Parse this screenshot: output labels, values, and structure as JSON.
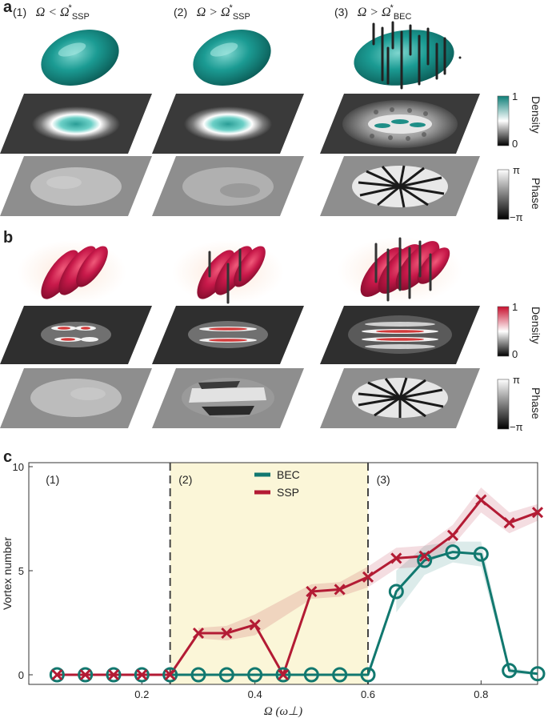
{
  "panels": {
    "a": "a",
    "b": "b",
    "c": "c"
  },
  "columns": [
    {
      "num": "(1)",
      "sym": "Ω",
      "rel": "<",
      "star": "*",
      "sub": "SSP"
    },
    {
      "num": "(2)",
      "sym": "Ω",
      "rel": ">",
      "star": "*",
      "sub": "SSP"
    },
    {
      "num": "(3)",
      "sym": "Ω",
      "rel": ">",
      "star": "*",
      "sub": "BEC"
    }
  ],
  "colorbars": {
    "density_a": {
      "label": "Density",
      "top": "1",
      "bottom": "0",
      "color": "#0f7f78"
    },
    "phase_a": {
      "label": "Phase",
      "top": "π",
      "bottom": "−π"
    },
    "density_b": {
      "label": "Density",
      "top": "1",
      "bottom": "0",
      "color": "#c8102e"
    },
    "phase_b": {
      "label": "Phase",
      "top": "π",
      "bottom": "−π"
    }
  },
  "chart_data": {
    "type": "line",
    "xlabel": "Ω (ω⊥)",
    "ylabel": "Vortex number",
    "xlim": [
      0.0,
      0.9
    ],
    "ylim": [
      0,
      10
    ],
    "xticks": [
      "0.2",
      "0.4",
      "0.6",
      "0.8"
    ],
    "xtick_values": [
      0.2,
      0.4,
      0.6,
      0.8
    ],
    "yticks": [
      "0",
      "5",
      "10"
    ],
    "ytick_values": [
      0,
      5,
      10
    ],
    "regions": [
      {
        "label": "(1)",
        "from": 0.0,
        "to": 0.25
      },
      {
        "label": "(2)",
        "from": 0.25,
        "to": 0.6,
        "fill": "#fbf6d8"
      },
      {
        "label": "(3)",
        "from": 0.6,
        "to": 0.9
      }
    ],
    "dashed_lines_x": [
      0.25,
      0.6
    ],
    "legend": {
      "position": "top-center"
    },
    "series": [
      {
        "name": "BEC",
        "color": "#11786f",
        "marker": "circle",
        "x": [
          0.05,
          0.1,
          0.15,
          0.2,
          0.25,
          0.3,
          0.35,
          0.4,
          0.45,
          0.5,
          0.55,
          0.6,
          0.65,
          0.7,
          0.75,
          0.8,
          0.85,
          0.9
        ],
        "y": [
          0,
          0,
          0,
          0,
          0,
          0,
          0,
          0,
          0,
          0,
          0,
          0,
          4.0,
          5.5,
          5.9,
          5.8,
          0.2,
          0.05
        ],
        "band": [
          0,
          0,
          0,
          0,
          0,
          0,
          0,
          0,
          0,
          0,
          0,
          0,
          1.0,
          0.7,
          0.5,
          0.6,
          0.15,
          0.05
        ]
      },
      {
        "name": "SSP",
        "color": "#b31b34",
        "marker": "x",
        "x": [
          0.05,
          0.1,
          0.15,
          0.2,
          0.25,
          0.3,
          0.35,
          0.4,
          0.45,
          0.5,
          0.55,
          0.6,
          0.65,
          0.7,
          0.75,
          0.8,
          0.85,
          0.9
        ],
        "y": [
          0,
          0,
          0,
          0,
          0,
          2.0,
          2.0,
          2.4,
          0,
          4.0,
          4.1,
          4.7,
          5.6,
          5.7,
          6.7,
          8.4,
          7.3,
          7.8
        ],
        "band": [
          0,
          0,
          0,
          0,
          0,
          0.25,
          0.35,
          0.5,
          0,
          0.35,
          0.35,
          0.5,
          0.5,
          0.5,
          0.5,
          0.6,
          0.5,
          0.4
        ]
      }
    ]
  }
}
